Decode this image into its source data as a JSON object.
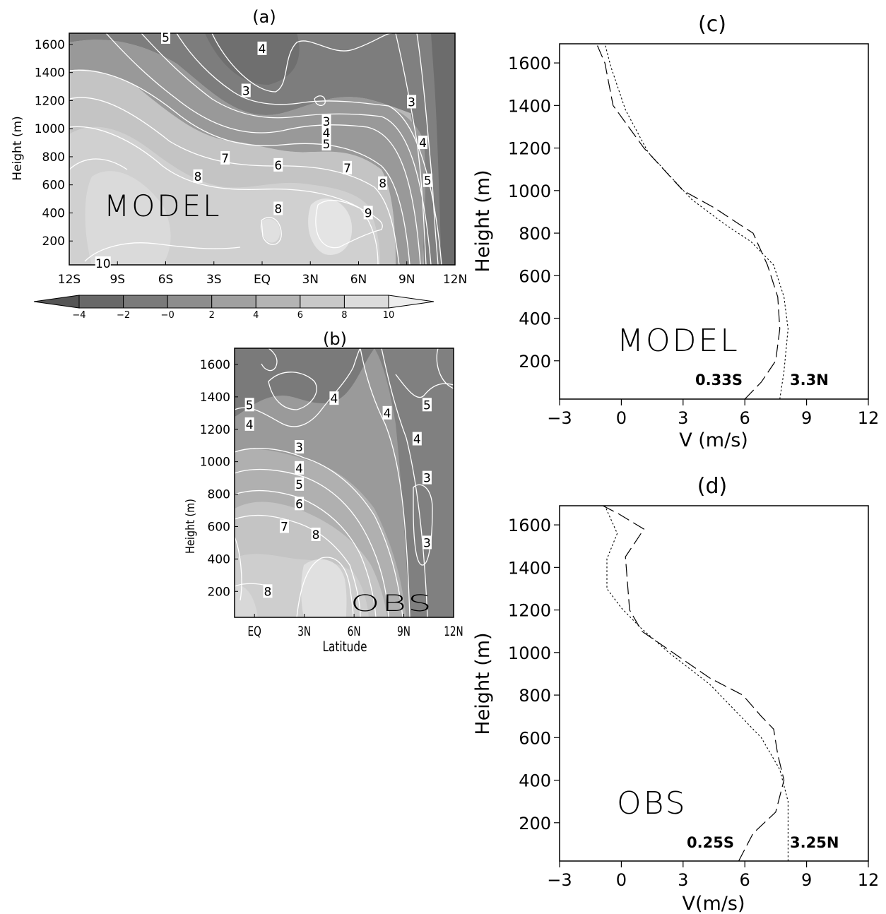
{
  "chart_data": [
    {
      "id": "a",
      "type": "heatmap",
      "title": "(a)",
      "annotation": "MODEL",
      "ylabel": "Height (m)",
      "xlabel": "",
      "x_ticks": [
        "12S",
        "9S",
        "6S",
        "3S",
        "EQ",
        "3N",
        "6N",
        "9N",
        "12N"
      ],
      "x_range": [
        -12,
        12
      ],
      "y_ticks": [
        200,
        400,
        600,
        800,
        1000,
        1200,
        1400,
        1600
      ],
      "y_range": [
        30,
        1680
      ],
      "shade_levels": [
        -4,
        -2,
        0,
        2,
        4,
        6,
        8,
        10
      ],
      "contour_labels": [
        {
          "text": "5",
          "lat": -6.0,
          "h": 1650
        },
        {
          "text": "4",
          "lat": 0.0,
          "h": 1570
        },
        {
          "text": "3",
          "lat": -1.0,
          "h": 1270
        },
        {
          "text": "3",
          "lat": 9.3,
          "h": 1190
        },
        {
          "text": "3",
          "lat": 4.0,
          "h": 1050
        },
        {
          "text": "4",
          "lat": 4.0,
          "h": 970
        },
        {
          "text": "5",
          "lat": 4.0,
          "h": 890
        },
        {
          "text": "4",
          "lat": 10.0,
          "h": 900
        },
        {
          "text": "7",
          "lat": -2.3,
          "h": 790
        },
        {
          "text": "6",
          "lat": 1.0,
          "h": 740
        },
        {
          "text": "7",
          "lat": 5.3,
          "h": 720
        },
        {
          "text": "8",
          "lat": -4.0,
          "h": 660
        },
        {
          "text": "8",
          "lat": 7.5,
          "h": 610
        },
        {
          "text": "5",
          "lat": 10.3,
          "h": 630
        },
        {
          "text": "8",
          "lat": 1.0,
          "h": 430
        },
        {
          "text": "9",
          "lat": 6.6,
          "h": 400
        },
        {
          "text": "10",
          "lat": -9.9,
          "h": 40
        }
      ]
    },
    {
      "id": "colorbar",
      "type": "colorbar",
      "tick_labels": [
        "-4",
        "-2",
        "-0",
        "2",
        "4",
        "6",
        "8",
        "10"
      ],
      "colors": [
        "#555555",
        "#686868",
        "#7a7a7a",
        "#8d8d8d",
        "#a0a0a0",
        "#b4b4b4",
        "#c8c8c8",
        "#dcdcdc",
        "#eeeeee"
      ]
    },
    {
      "id": "b",
      "type": "heatmap",
      "title": "(b)",
      "annotation": "OBS",
      "ylabel": "Height (m)",
      "xlabel": "Latitude",
      "x_ticks": [
        "EQ",
        "3N",
        "6N",
        "9N",
        "12N"
      ],
      "x_range": [
        -1.2,
        12
      ],
      "y_ticks": [
        200,
        400,
        600,
        800,
        1000,
        1200,
        1400,
        1600
      ],
      "y_range": [
        40,
        1700
      ],
      "contour_labels": [
        {
          "text": "5",
          "lat": -0.3,
          "h": 1350
        },
        {
          "text": "4",
          "lat": -0.3,
          "h": 1230
        },
        {
          "text": "4",
          "lat": 4.8,
          "h": 1390
        },
        {
          "text": "4",
          "lat": 8.0,
          "h": 1300
        },
        {
          "text": "5",
          "lat": 10.4,
          "h": 1350
        },
        {
          "text": "4",
          "lat": 9.8,
          "h": 1140
        },
        {
          "text": "3",
          "lat": 2.7,
          "h": 1090
        },
        {
          "text": "4",
          "lat": 2.7,
          "h": 960
        },
        {
          "text": "5",
          "lat": 2.7,
          "h": 860
        },
        {
          "text": "3",
          "lat": 10.4,
          "h": 900
        },
        {
          "text": "6",
          "lat": 2.7,
          "h": 740
        },
        {
          "text": "7",
          "lat": 1.8,
          "h": 600
        },
        {
          "text": "8",
          "lat": 3.7,
          "h": 550
        },
        {
          "text": "3",
          "lat": 10.4,
          "h": 500
        },
        {
          "text": "8",
          "lat": 0.8,
          "h": 200
        }
      ]
    },
    {
      "id": "c",
      "type": "line",
      "title": "(c)",
      "annotation": "MODEL",
      "xlabel": "V (m/s)",
      "ylabel": "Height (m)",
      "x_ticks": [
        -3,
        0,
        3,
        6,
        9,
        12
      ],
      "xlim": [
        -3,
        12
      ],
      "y_ticks": [
        200,
        400,
        600,
        800,
        1000,
        1200,
        1400,
        1600
      ],
      "ylim": [
        20,
        1690
      ],
      "series": [
        {
          "name": "0.33S",
          "style": "dashed",
          "v": [
            6.0,
            6.8,
            7.5,
            7.7,
            7.6,
            7.1,
            6.4,
            5.6,
            4.5,
            3.0,
            1.1,
            -0.4,
            -0.8,
            -1.2
          ],
          "h": [
            20,
            100,
            200,
            350,
            500,
            650,
            800,
            850,
            920,
            1000,
            1200,
            1400,
            1600,
            1690
          ]
        },
        {
          "name": "3.3N",
          "style": "dotted",
          "v": [
            7.7,
            7.9,
            8.1,
            7.9,
            7.4,
            6.3,
            4.9,
            3.4,
            1.3,
            0.2,
            -0.5,
            -0.8
          ],
          "h": [
            20,
            150,
            350,
            500,
            650,
            760,
            850,
            960,
            1180,
            1380,
            1580,
            1690
          ]
        }
      ]
    },
    {
      "id": "d",
      "type": "line",
      "title": "(d)",
      "annotation": "OBS",
      "xlabel": "V(m/s)",
      "ylabel": "Height (m)",
      "x_ticks": [
        -3,
        0,
        3,
        6,
        9,
        12
      ],
      "xlim": [
        -3,
        12
      ],
      "y_ticks": [
        200,
        400,
        600,
        800,
        1000,
        1200,
        1400,
        1600
      ],
      "ylim": [
        20,
        1690
      ],
      "series": [
        {
          "name": "0.25S",
          "style": "dashed",
          "v": [
            5.7,
            6.4,
            7.5,
            7.9,
            7.6,
            7.4,
            6.8,
            5.9,
            4.3,
            2.5,
            1.0,
            0.4,
            0.2,
            1.1,
            -0.1,
            -0.9
          ],
          "h": [
            20,
            150,
            250,
            400,
            520,
            640,
            700,
            800,
            880,
            1000,
            1100,
            1200,
            1450,
            1580,
            1650,
            1690
          ]
        },
        {
          "name": "3.25N",
          "style": "dotted",
          "v": [
            8.1,
            8.1,
            7.7,
            6.8,
            5.8,
            4.3,
            2.3,
            0.9,
            0.0,
            -0.7,
            -0.7,
            -0.2,
            -0.8
          ],
          "h": [
            20,
            300,
            450,
            600,
            700,
            850,
            1000,
            1120,
            1210,
            1300,
            1440,
            1560,
            1690
          ]
        }
      ]
    }
  ]
}
